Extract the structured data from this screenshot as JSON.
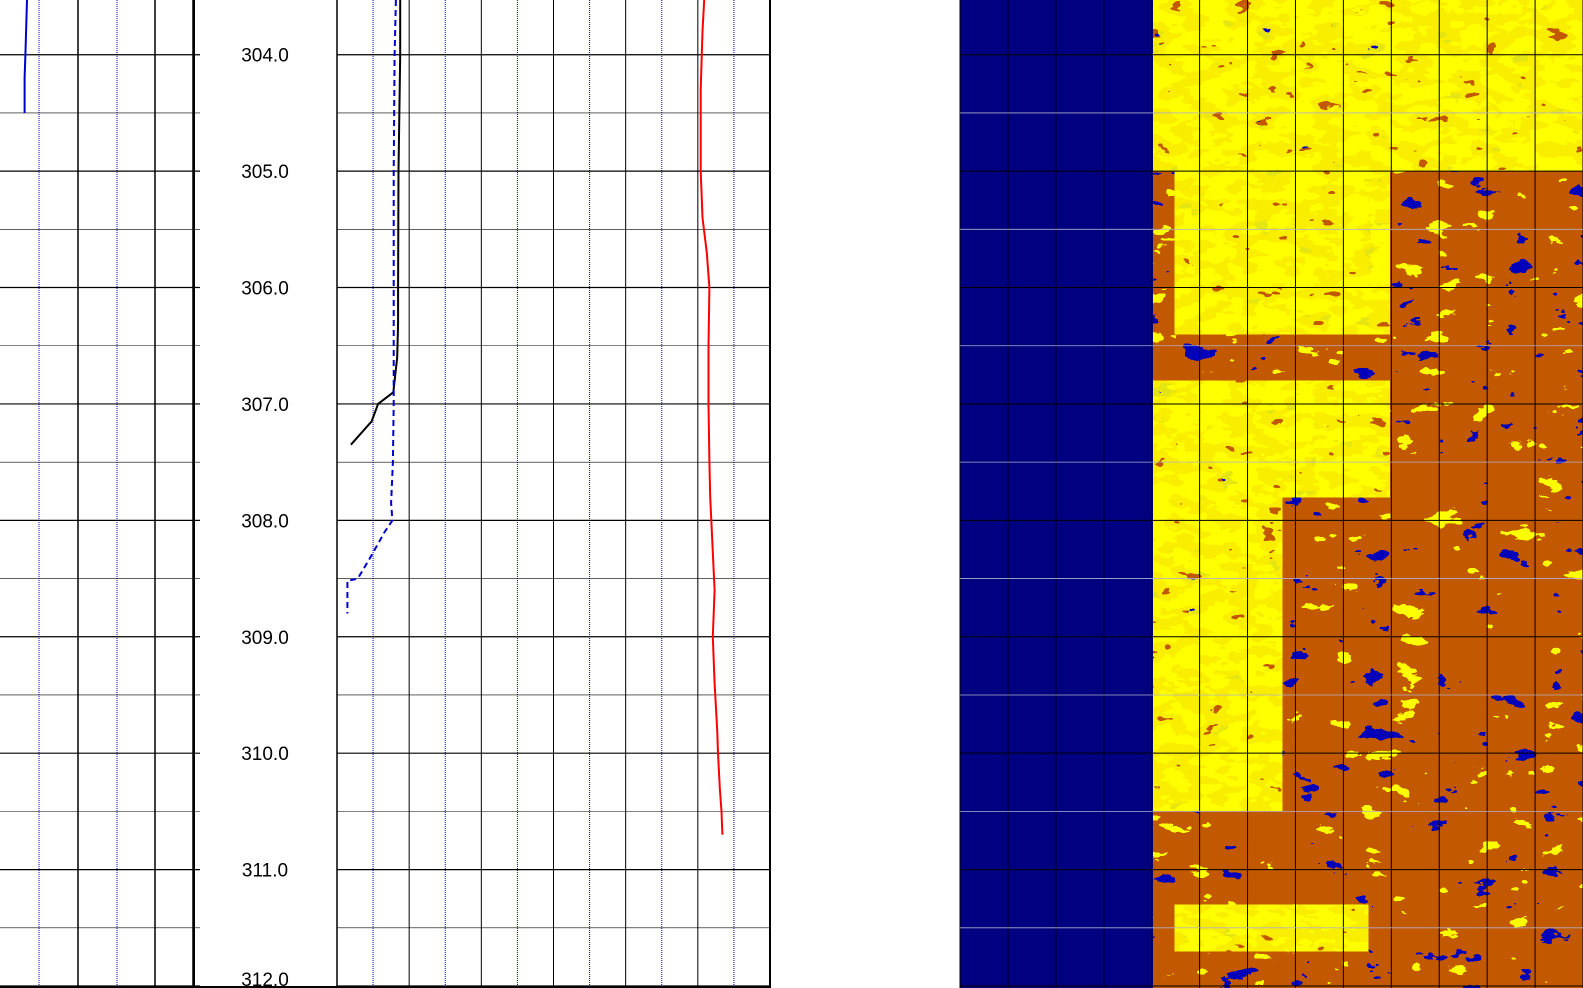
{
  "chart_data": {
    "type": "line",
    "title": "",
    "ylabel": "",
    "y_axis": "depth",
    "depth_range": [
      303.53,
      312.0
    ],
    "depth_ticks": [
      "304.0",
      "305.0",
      "306.0",
      "307.0",
      "308.0",
      "309.0",
      "310.0",
      "311.0",
      "312.0"
    ],
    "tracks": [
      {
        "id": "track-1",
        "grid": "log",
        "series": [
          {
            "color": "#0000cc",
            "style": "solid",
            "points": [
              [
                303.53,
                0.035
              ],
              [
                304.0,
                0.033
              ],
              [
                304.2,
                0.032
              ],
              [
                304.5,
                0.032
              ]
            ]
          }
        ]
      },
      {
        "id": "track-3",
        "grid": "linear",
        "series": [
          {
            "color": "#000000",
            "style": "solid",
            "points": [
              [
                303.53,
                0.146
              ],
              [
                304.0,
                0.146
              ],
              [
                305.0,
                0.142
              ],
              [
                306.0,
                0.141
              ],
              [
                306.3,
                0.141
              ],
              [
                306.6,
                0.139
              ],
              [
                306.9,
                0.13
              ],
              [
                307.0,
                0.095
              ],
              [
                307.15,
                0.08
              ],
              [
                307.35,
                0.032
              ]
            ]
          },
          {
            "color": "#0000cc",
            "style": "dashed",
            "points": [
              [
                303.53,
                0.136
              ],
              [
                304.0,
                0.133
              ],
              [
                305.0,
                0.131
              ],
              [
                306.0,
                0.131
              ],
              [
                307.0,
                0.131
              ],
              [
                307.5,
                0.129
              ],
              [
                307.85,
                0.125
              ],
              [
                308.0,
                0.128
              ],
              [
                308.1,
                0.11
              ],
              [
                308.3,
                0.08
              ],
              [
                308.5,
                0.048
              ],
              [
                308.52,
                0.024
              ],
              [
                308.8,
                0.024
              ]
            ]
          },
          {
            "color": "#ff0000",
            "style": "solid",
            "points": [
              [
                303.53,
                0.848
              ],
              [
                303.8,
                0.844
              ],
              [
                304.3,
                0.84
              ],
              [
                305.0,
                0.84
              ],
              [
                305.4,
                0.844
              ],
              [
                305.7,
                0.854
              ],
              [
                306.0,
                0.86
              ],
              [
                306.5,
                0.858
              ],
              [
                307.0,
                0.858
              ],
              [
                307.5,
                0.86
              ],
              [
                307.8,
                0.862
              ],
              [
                308.2,
                0.867
              ],
              [
                308.6,
                0.872
              ],
              [
                309.0,
                0.868
              ],
              [
                309.4,
                0.872
              ],
              [
                309.8,
                0.878
              ],
              [
                310.0,
                0.88
              ],
              [
                310.3,
                0.884
              ],
              [
                310.5,
                0.888
              ],
              [
                310.7,
                0.89
              ]
            ]
          }
        ]
      },
      {
        "id": "image-track",
        "type": "heatmap",
        "colors": {
          "background": "#000080",
          "mid": "#8b1a00",
          "high": "#ffff00"
        },
        "active_from": 0.31,
        "bright_zones": [
          [
            303.53,
            305.0,
            0.0,
            1.0
          ],
          [
            305.0,
            306.4,
            0.05,
            0.55
          ],
          [
            306.8,
            307.8,
            0.0,
            0.55
          ],
          [
            307.8,
            310.5,
            0.0,
            0.3
          ],
          [
            311.3,
            311.7,
            0.05,
            0.5
          ]
        ]
      }
    ]
  }
}
